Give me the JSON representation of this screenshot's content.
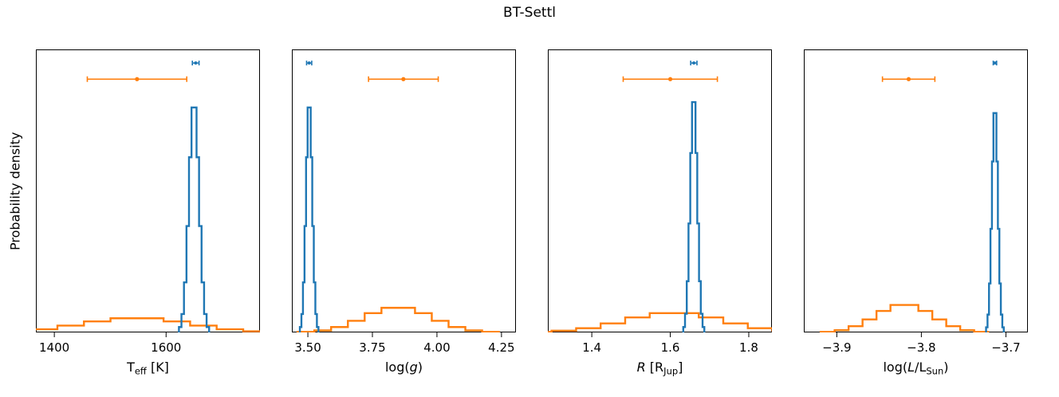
{
  "title": "BT-Settl",
  "ylabel": "Probability density",
  "colors": {
    "blue": "#1f77b4",
    "orange": "#ff7f0e"
  },
  "chart_data": {
    "type": "histogram-step",
    "title": "BT-Settl",
    "ylabel": "Probability density",
    "y_tick_labels": "none",
    "legend": "none",
    "panels": [
      {
        "name": "teff",
        "xlabel_segments": [
          {
            "t": "T",
            "s": "n"
          },
          {
            "t": "eff",
            "s": "sub"
          },
          {
            "t": " [K]",
            "s": "n"
          }
        ],
        "xlim": [
          1367,
          1768
        ],
        "ticks": [
          {
            "v": 1400,
            "label": "1400"
          },
          {
            "v": 1600,
            "label": "1600"
          }
        ],
        "series": [
          {
            "name": "orange",
            "color": "orange",
            "bin_width": 47.5,
            "x": [
              1286.75,
              1334.25,
              1381.75,
              1429.25,
              1476.75,
              1524.25,
              1571.75,
              1619.25,
              1666.75,
              1714.25,
              1761.75,
              1809.25
            ],
            "y": [
              0.001,
              0.004,
              0.011,
              0.024,
              0.039,
              0.05,
              0.05,
              0.039,
              0.024,
              0.011,
              0.004,
              0.001
            ]
          },
          {
            "name": "blue",
            "color": "blue",
            "bin_width": 4.5,
            "x": [
              1625.25,
              1629.75,
              1634.25,
              1638.75,
              1643.25,
              1647.75,
              1652.25,
              1656.75,
              1661.25,
              1665.75,
              1670.25,
              1674.75
            ],
            "y": [
              0.019,
              0.065,
              0.177,
              0.376,
              0.619,
              0.795,
              0.795,
              0.619,
              0.376,
              0.177,
              0.065,
              0.019
            ]
          }
        ],
        "errorbars": [
          {
            "color": "orange",
            "x": 1548,
            "xerr": 89,
            "yfrac": 0.895
          },
          {
            "color": "blue",
            "x": 1653,
            "xerr": 6,
            "yfrac": 0.952
          }
        ]
      },
      {
        "name": "logg",
        "xlabel_segments": [
          {
            "t": "log(",
            "s": "n"
          },
          {
            "t": "g",
            "s": "i"
          },
          {
            "t": ")",
            "s": "n"
          }
        ],
        "xlim": [
          3.438,
          4.306
        ],
        "ticks": [
          {
            "v": 3.5,
            "label": "3.50"
          },
          {
            "v": 3.75,
            "label": "3.75"
          },
          {
            "v": 4.0,
            "label": "4.00"
          },
          {
            "v": 4.25,
            "label": "4.25"
          }
        ],
        "series": [
          {
            "name": "orange",
            "color": "orange",
            "bin_width": 0.065,
            "x": [
              3.4925,
              3.5575,
              3.6225,
              3.6875,
              3.7525,
              3.8175,
              3.8825,
              3.9475,
              4.0125,
              4.0775,
              4.1425,
              4.2075
            ],
            "y": [
              0.002,
              0.007,
              0.019,
              0.041,
              0.068,
              0.087,
              0.087,
              0.068,
              0.041,
              0.019,
              0.007,
              0.002
            ]
          },
          {
            "name": "blue",
            "color": "blue",
            "bin_width": 0.006,
            "x": [
              3.472,
              3.478,
              3.484,
              3.49,
              3.496,
              3.502,
              3.508,
              3.514,
              3.52,
              3.526,
              3.532,
              3.538
            ],
            "y": [
              0.019,
              0.065,
              0.177,
              0.376,
              0.619,
              0.795,
              0.795,
              0.619,
              0.376,
              0.177,
              0.065,
              0.019
            ]
          }
        ],
        "errorbars": [
          {
            "color": "orange",
            "x": 3.87,
            "xerr": 0.135,
            "yfrac": 0.895
          },
          {
            "color": "blue",
            "x": 3.505,
            "xerr": 0.01,
            "yfrac": 0.952
          }
        ]
      },
      {
        "name": "radius",
        "xlabel_segments": [
          {
            "t": "R",
            "s": "i"
          },
          {
            "t": " [R",
            "s": "n"
          },
          {
            "t": "Jup",
            "s": "sub"
          },
          {
            "t": "]",
            "s": "n"
          }
        ],
        "xlim": [
          1.288,
          1.859
        ],
        "ticks": [
          {
            "v": 1.4,
            "label": "1.4"
          },
          {
            "v": 1.6,
            "label": "1.6"
          },
          {
            "v": 1.8,
            "label": "1.8"
          }
        ],
        "series": [
          {
            "name": "orange",
            "color": "orange",
            "bin_width": 0.0625,
            "x": [
              1.2663,
              1.3288,
              1.3913,
              1.4538,
              1.5163,
              1.5788,
              1.6413,
              1.7038,
              1.7663,
              1.8288,
              1.8913,
              1.9538
            ],
            "y": [
              0.002,
              0.006,
              0.015,
              0.032,
              0.053,
              0.068,
              0.068,
              0.053,
              0.032,
              0.015,
              0.006,
              0.002
            ]
          },
          {
            "name": "blue",
            "color": "blue",
            "bin_width": 0.0045,
            "x": [
              1.6353,
              1.6398,
              1.6442,
              1.6487,
              1.6532,
              1.6577,
              1.662,
              1.6665,
              1.671,
              1.6755,
              1.68,
              1.6845
            ],
            "y": [
              0.019,
              0.066,
              0.181,
              0.385,
              0.634,
              0.814,
              0.814,
              0.634,
              0.385,
              0.181,
              0.066,
              0.019
            ]
          }
        ],
        "errorbars": [
          {
            "color": "orange",
            "x": 1.6,
            "xerr": 0.12,
            "yfrac": 0.895
          },
          {
            "color": "blue",
            "x": 1.66,
            "xerr": 0.008,
            "yfrac": 0.952
          }
        ]
      },
      {
        "name": "luminosity",
        "xlabel_segments": [
          {
            "t": "log(",
            "s": "n"
          },
          {
            "t": "L",
            "s": "i"
          },
          {
            "t": "/L",
            "s": "n"
          },
          {
            "t": "Sun",
            "s": "sub"
          },
          {
            "t": ")",
            "s": "n"
          }
        ],
        "xlim": [
          -3.939,
          -3.674
        ],
        "ticks": [
          {
            "v": -3.9,
            "label": "−3.9"
          },
          {
            "v": -3.8,
            "label": "−3.8"
          },
          {
            "v": -3.7,
            "label": "−3.7"
          }
        ],
        "series": [
          {
            "name": "orange",
            "color": "orange",
            "bin_width": 0.0165,
            "x": [
              -3.9108,
              -3.8943,
              -3.8778,
              -3.8613,
              -3.8448,
              -3.8283,
              -3.8118,
              -3.7953,
              -3.7788,
              -3.7623,
              -3.7458,
              -3.7293
            ],
            "y": [
              0.002,
              0.008,
              0.022,
              0.046,
              0.076,
              0.097,
              0.097,
              0.076,
              0.046,
              0.022,
              0.008,
              0.002
            ]
          },
          {
            "name": "blue",
            "color": "blue",
            "bin_width": 0.00175,
            "x": [
              -3.7226,
              -3.7209,
              -3.7191,
              -3.7174,
              -3.7156,
              -3.7139,
              -3.7121,
              -3.7104,
              -3.7086,
              -3.7069,
              -3.7051,
              -3.7034
            ],
            "y": [
              0.018,
              0.063,
              0.173,
              0.366,
              0.604,
              0.775,
              0.775,
              0.604,
              0.366,
              0.173,
              0.063,
              0.018
            ]
          }
        ],
        "errorbars": [
          {
            "color": "orange",
            "x": -3.815,
            "xerr": 0.031,
            "yfrac": 0.895
          },
          {
            "color": "blue",
            "x": -3.713,
            "xerr": 0.002,
            "yfrac": 0.952
          }
        ]
      }
    ]
  }
}
